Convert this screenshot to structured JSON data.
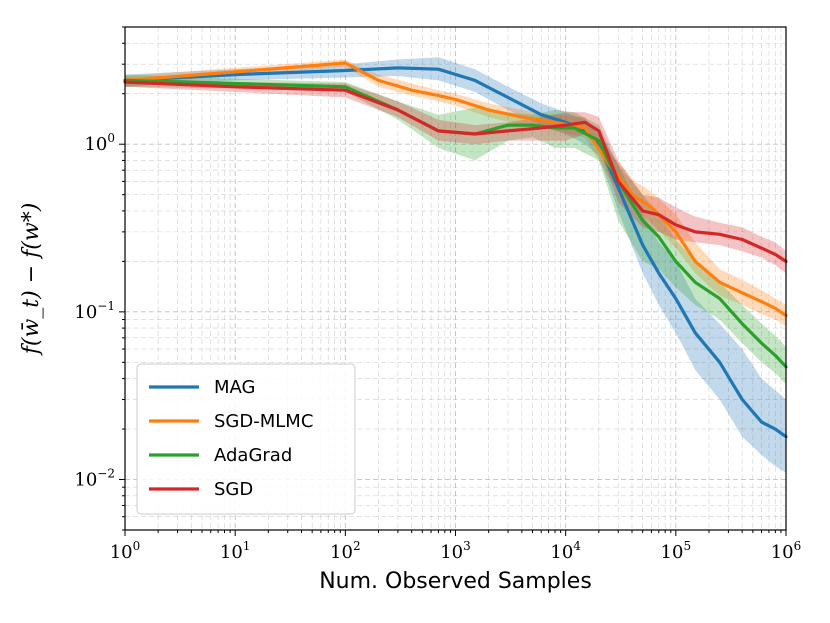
{
  "chart_data": {
    "type": "line",
    "title": "",
    "xlabel": "Num. Observed Samples",
    "ylabel": "f(w̄_t) − f(w*)",
    "xscale": "log",
    "yscale": "log",
    "xlim": [
      1,
      1000000
    ],
    "ylim": [
      0.005,
      5
    ],
    "grid": true,
    "legend_position": "lower-left",
    "x_ticks": [
      {
        "value": 1,
        "base": "10",
        "exp": "0"
      },
      {
        "value": 10,
        "base": "10",
        "exp": "1"
      },
      {
        "value": 100,
        "base": "10",
        "exp": "2"
      },
      {
        "value": 1000,
        "base": "10",
        "exp": "3"
      },
      {
        "value": 10000,
        "base": "10",
        "exp": "4"
      },
      {
        "value": 100000,
        "base": "10",
        "exp": "5"
      },
      {
        "value": 1000000,
        "base": "10",
        "exp": "6"
      }
    ],
    "y_ticks": [
      {
        "value": 0.01,
        "base": "10",
        "exp": "−2"
      },
      {
        "value": 0.1,
        "base": "10",
        "exp": "−1"
      },
      {
        "value": 1,
        "base": "10",
        "exp": "0"
      }
    ],
    "series": [
      {
        "name": "MAG",
        "color": "#1f77b4",
        "x": [
          1,
          10,
          100,
          300,
          700,
          1500,
          3000,
          6000,
          10000,
          15000,
          20000,
          30000,
          50000,
          70000,
          100000,
          150000,
          250000,
          400000,
          600000,
          800000,
          1000000
        ],
        "y": [
          2.4,
          2.6,
          2.75,
          2.85,
          2.8,
          2.4,
          1.9,
          1.5,
          1.35,
          1.2,
          1.0,
          0.55,
          0.25,
          0.17,
          0.12,
          0.075,
          0.05,
          0.03,
          0.022,
          0.02,
          0.018
        ],
        "upper": [
          2.6,
          2.8,
          3.0,
          3.2,
          3.3,
          2.8,
          2.2,
          1.75,
          1.55,
          1.4,
          1.2,
          0.75,
          0.38,
          0.26,
          0.2,
          0.12,
          0.085,
          0.06,
          0.04,
          0.034,
          0.03
        ],
        "lower": [
          2.2,
          2.4,
          2.5,
          2.55,
          2.4,
          2.05,
          1.6,
          1.3,
          1.15,
          1.0,
          0.85,
          0.4,
          0.17,
          0.11,
          0.075,
          0.045,
          0.03,
          0.018,
          0.014,
          0.012,
          0.011
        ]
      },
      {
        "name": "SGD-MLMC",
        "color": "#ff7f0e",
        "x": [
          1,
          10,
          100,
          200,
          400,
          700,
          1000,
          2000,
          4000,
          8000,
          15000,
          25000,
          40000,
          60000,
          100000,
          150000,
          250000,
          400000,
          600000,
          800000,
          1000000
        ],
        "y": [
          2.4,
          2.7,
          3.05,
          2.4,
          2.1,
          1.95,
          1.85,
          1.6,
          1.45,
          1.35,
          1.25,
          0.75,
          0.5,
          0.42,
          0.3,
          0.2,
          0.15,
          0.13,
          0.115,
          0.105,
          0.095
        ],
        "upper": [
          2.55,
          2.85,
          3.2,
          2.6,
          2.3,
          2.1,
          2.0,
          1.75,
          1.6,
          1.5,
          1.45,
          0.9,
          0.62,
          0.52,
          0.38,
          0.26,
          0.18,
          0.155,
          0.135,
          0.12,
          0.11
        ],
        "lower": [
          2.25,
          2.55,
          2.9,
          2.2,
          1.95,
          1.8,
          1.7,
          1.45,
          1.3,
          1.2,
          1.1,
          0.62,
          0.42,
          0.34,
          0.24,
          0.17,
          0.125,
          0.11,
          0.097,
          0.09,
          0.082
        ]
      },
      {
        "name": "AdaGrad",
        "color": "#2ca02c",
        "x": [
          1,
          10,
          100,
          300,
          700,
          1500,
          3000,
          5000,
          8000,
          12000,
          20000,
          30000,
          50000,
          70000,
          100000,
          150000,
          250000,
          400000,
          600000,
          800000,
          1000000
        ],
        "y": [
          2.4,
          2.3,
          2.2,
          1.6,
          1.2,
          1.15,
          1.3,
          1.3,
          1.25,
          1.25,
          1.05,
          0.6,
          0.35,
          0.28,
          0.2,
          0.15,
          0.12,
          0.085,
          0.065,
          0.055,
          0.047
        ],
        "upper": [
          2.6,
          2.45,
          2.35,
          1.8,
          1.5,
          1.65,
          1.55,
          1.5,
          1.6,
          1.55,
          1.3,
          0.75,
          0.5,
          0.38,
          0.27,
          0.2,
          0.15,
          0.11,
          0.085,
          0.072,
          0.062
        ],
        "lower": [
          2.2,
          2.15,
          2.05,
          1.4,
          0.95,
          0.8,
          1.05,
          1.1,
          0.95,
          0.95,
          0.8,
          0.35,
          0.2,
          0.18,
          0.14,
          0.11,
          0.09,
          0.065,
          0.05,
          0.043,
          0.037
        ]
      },
      {
        "name": "SGD",
        "color": "#d62728",
        "x": [
          1,
          10,
          100,
          300,
          700,
          1500,
          3000,
          6000,
          10000,
          15000,
          20000,
          30000,
          50000,
          70000,
          100000,
          150000,
          250000,
          400000,
          600000,
          800000,
          1000000
        ],
        "y": [
          2.35,
          2.2,
          2.1,
          1.6,
          1.2,
          1.15,
          1.2,
          1.25,
          1.3,
          1.35,
          1.2,
          0.6,
          0.4,
          0.38,
          0.33,
          0.3,
          0.29,
          0.27,
          0.24,
          0.22,
          0.2
        ],
        "upper": [
          2.5,
          2.35,
          2.3,
          1.8,
          1.4,
          1.3,
          1.35,
          1.45,
          1.55,
          1.55,
          1.45,
          0.8,
          0.5,
          0.48,
          0.42,
          0.37,
          0.34,
          0.32,
          0.28,
          0.26,
          0.23
        ],
        "lower": [
          2.2,
          2.05,
          1.9,
          1.45,
          1.05,
          1.0,
          1.05,
          1.05,
          1.05,
          1.15,
          0.95,
          0.45,
          0.32,
          0.3,
          0.27,
          0.26,
          0.25,
          0.23,
          0.21,
          0.19,
          0.17
        ]
      }
    ]
  }
}
